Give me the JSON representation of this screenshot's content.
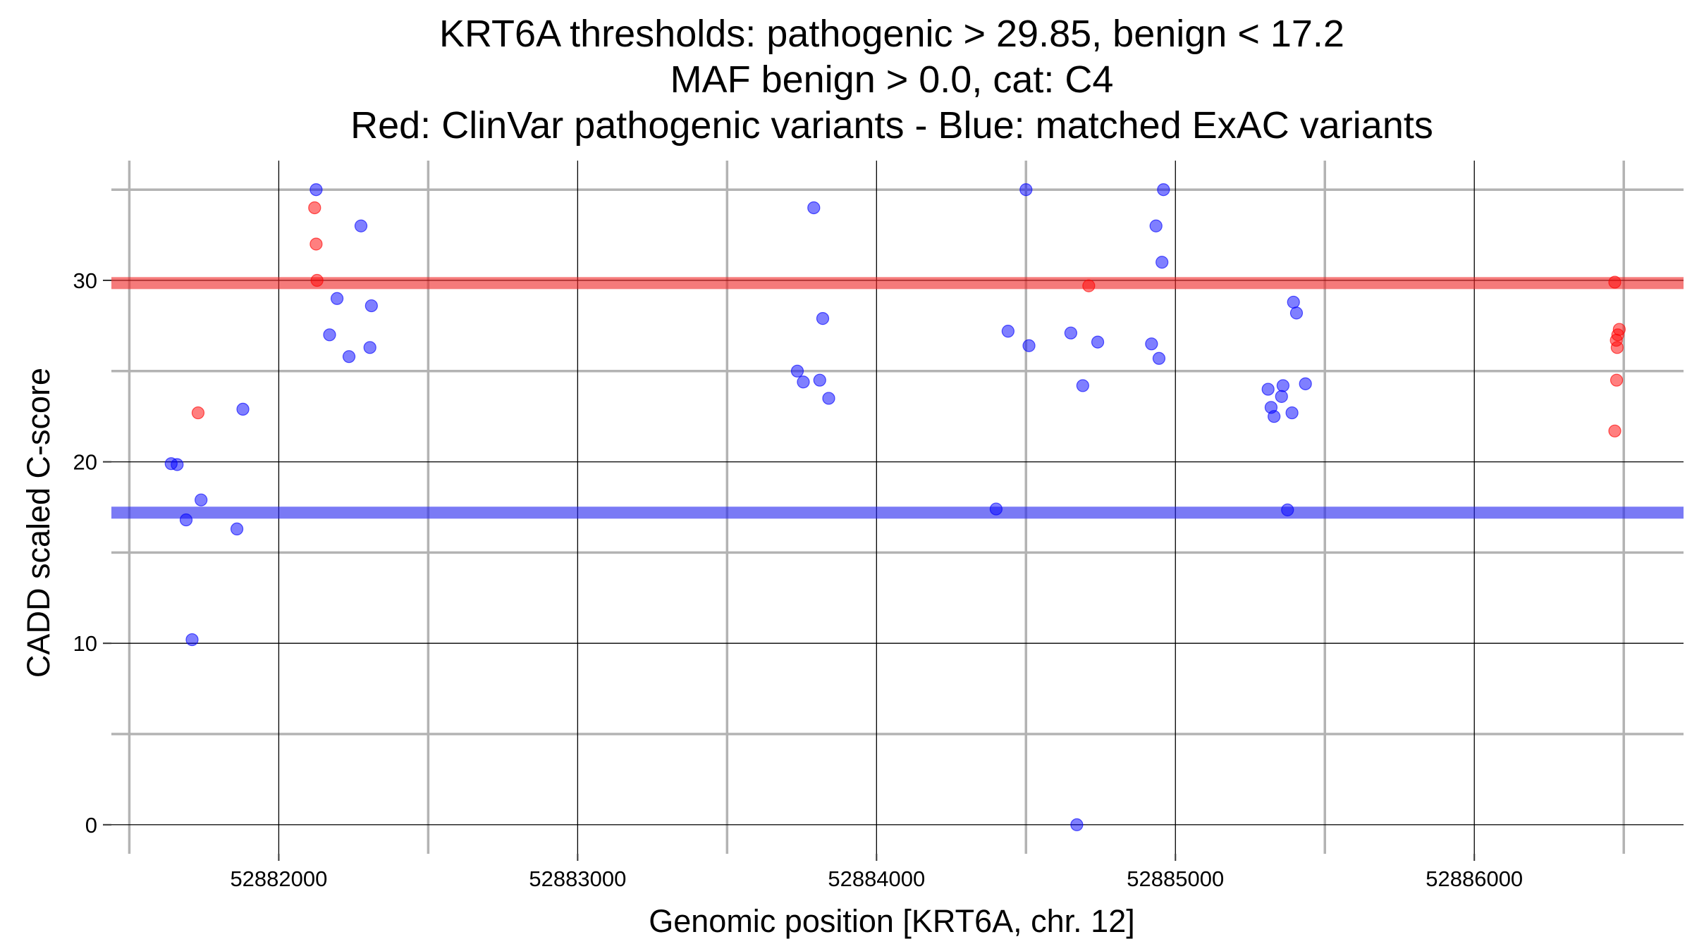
{
  "chart_data": {
    "type": "scatter",
    "title_lines": [
      "KRT6A thresholds: pathogenic > 29.85, benign < 17.2",
      "MAF benign > 0.0, cat: C4",
      "Red: ClinVar pathogenic variants - Blue: matched ExAC variants"
    ],
    "xlabel": "Genomic position [KRT6A, chr. 12]",
    "ylabel": "CADD scaled C-score",
    "xlim": [
      52881440,
      52886700
    ],
    "ylim": [
      -1.6,
      36.6
    ],
    "x_ticks": [
      52882000,
      52883000,
      52884000,
      52885000,
      52886000
    ],
    "x_tick_labels": [
      "52882000",
      "52883000",
      "52884000",
      "52885000",
      "52886000"
    ],
    "y_ticks": [
      0,
      10,
      20,
      30
    ],
    "y_tick_labels": [
      "0",
      "10",
      "20",
      "30"
    ],
    "grid": true,
    "thresholds": [
      {
        "name": "pathogenic",
        "value": 29.85,
        "color": "#ee2222"
      },
      {
        "name": "benign",
        "value": 17.2,
        "color": "#2222ee"
      }
    ],
    "colors": {
      "pathogenic": "#ff0000",
      "benign": "#0000ff"
    },
    "series": [
      {
        "color": "#ff0000",
        "points": [
          [
            52881730,
            22.7
          ],
          [
            52882120,
            34.0
          ],
          [
            52882125,
            32.0
          ],
          [
            52882128,
            30.0
          ],
          [
            52884710,
            29.7
          ],
          [
            52886470,
            29.9
          ],
          [
            52886475,
            26.7
          ],
          [
            52886480,
            27.0
          ],
          [
            52886485,
            27.3
          ],
          [
            52886478,
            26.3
          ],
          [
            52886476,
            24.5
          ],
          [
            52886470,
            21.7
          ]
        ]
      },
      {
        "color": "#0000ff",
        "points": [
          [
            52881640,
            19.9
          ],
          [
            52881660,
            19.85
          ],
          [
            52881690,
            16.8
          ],
          [
            52881710,
            10.2
          ],
          [
            52881740,
            17.9
          ],
          [
            52881860,
            16.3
          ],
          [
            52881880,
            22.9
          ],
          [
            52882125,
            35.0
          ],
          [
            52882170,
            27.0
          ],
          [
            52882195,
            29.0
          ],
          [
            52882235,
            25.8
          ],
          [
            52882275,
            33.0
          ],
          [
            52882305,
            26.3
          ],
          [
            52882310,
            28.6
          ],
          [
            52883735,
            25.0
          ],
          [
            52883755,
            24.4
          ],
          [
            52883790,
            34.0
          ],
          [
            52883810,
            24.5
          ],
          [
            52883820,
            27.9
          ],
          [
            52883840,
            23.5
          ],
          [
            52884400,
            17.4
          ],
          [
            52884440,
            27.2
          ],
          [
            52884500,
            35.0
          ],
          [
            52884510,
            26.4
          ],
          [
            52884650,
            27.1
          ],
          [
            52884670,
            0.0
          ],
          [
            52884690,
            24.2
          ],
          [
            52884740,
            26.6
          ],
          [
            52884920,
            26.5
          ],
          [
            52884935,
            33.0
          ],
          [
            52884945,
            25.7
          ],
          [
            52884955,
            31.0
          ],
          [
            52884960,
            35.0
          ],
          [
            52885310,
            24.0
          ],
          [
            52885320,
            23.0
          ],
          [
            52885330,
            22.5
          ],
          [
            52885360,
            24.2
          ],
          [
            52885355,
            23.6
          ],
          [
            52885375,
            17.35
          ],
          [
            52885390,
            22.7
          ],
          [
            52885395,
            28.8
          ],
          [
            52885405,
            28.2
          ],
          [
            52885435,
            24.3
          ]
        ]
      }
    ]
  }
}
